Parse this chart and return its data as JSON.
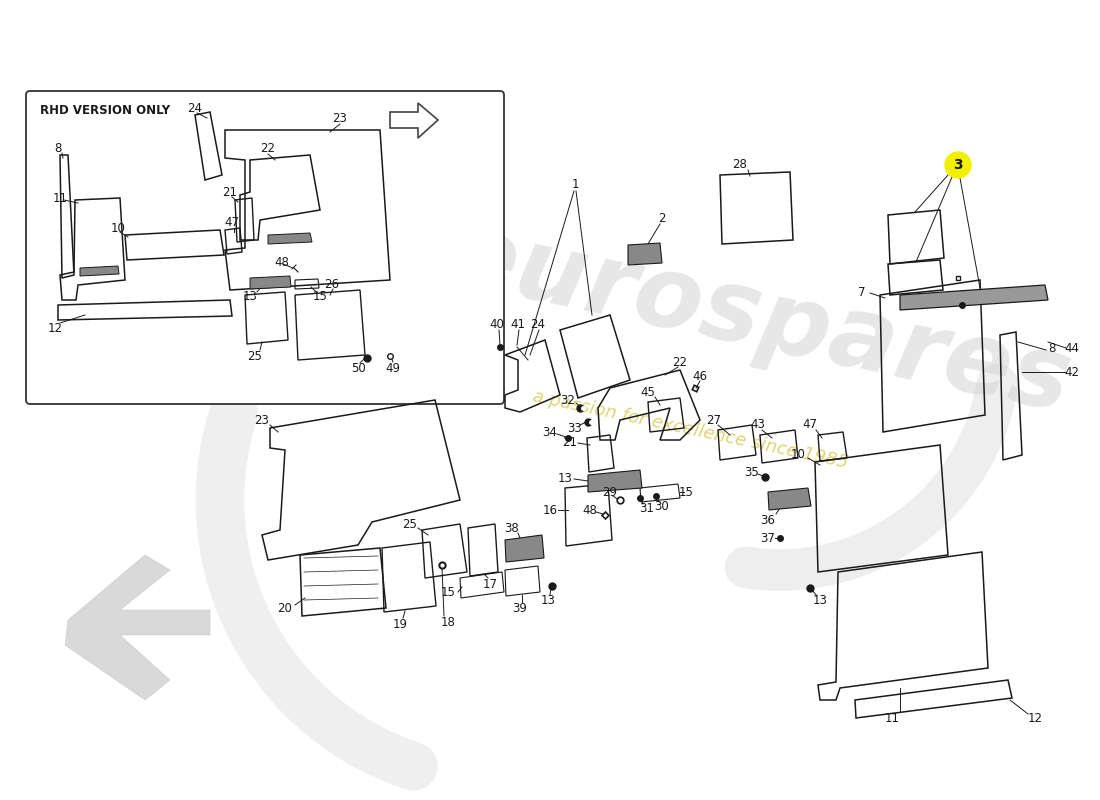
{
  "background_color": "#ffffff",
  "line_color": "#1a1a1a",
  "part_color": "#1a1a1a",
  "highlight_color": "#f0f000",
  "watermark_color": "#c8c8c8",
  "watermark_italic_color": "#d4c800",
  "rhd_box_label": "RHD VERSION ONLY",
  "fig_width": 11.0,
  "fig_height": 8.0,
  "dpi": 100
}
